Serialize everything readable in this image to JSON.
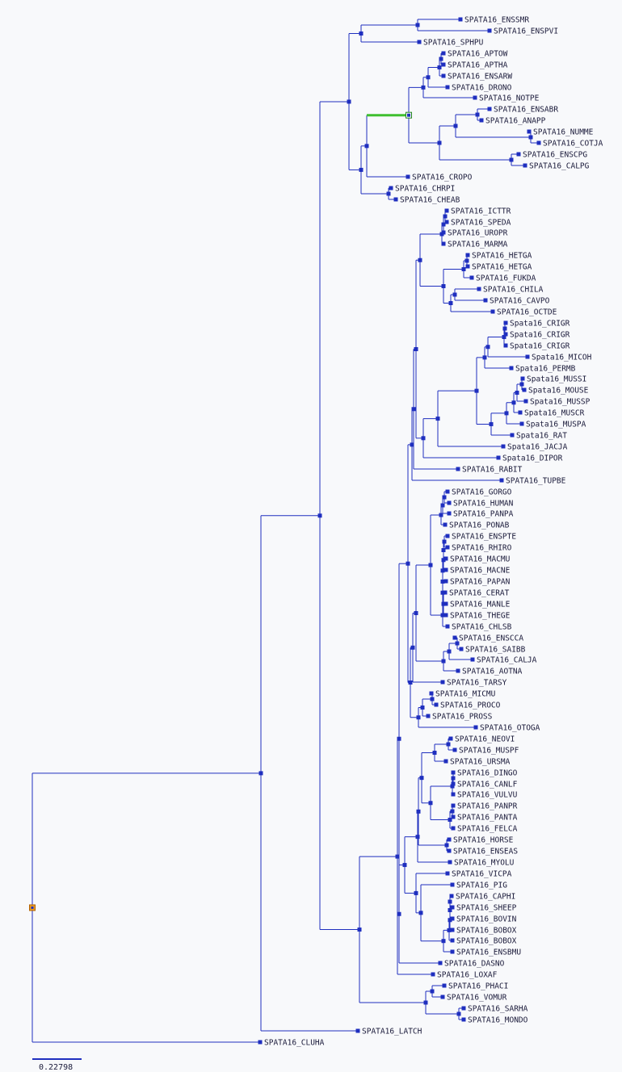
{
  "colors": {
    "branch": "#1f2fbf",
    "highlight": "#3fbf2f",
    "root_node": "#f0a020",
    "background": "#f8f9fb"
  },
  "scale_bar": {
    "label": "0.22798"
  },
  "leaves": [
    "SPATA16_ENSSMR",
    "SPATA16_ENSPVI",
    "SPATA16_SPHPU",
    "SPATA16_APTOW",
    "SPATA16_APTHA",
    "SPATA16_ENSARW",
    "SPATA16_DRONO",
    "SPATA16_NOTPE",
    "SPATA16_ENSABR",
    "SPATA16_ANAPP",
    "SPATA16_NUMME",
    "SPATA16_COTJA",
    "SPATA16_ENSCPG",
    "SPATA16_CALPG",
    "SPATA16_CROPO",
    "SPATA16_CHRPI",
    "SPATA16_CHEAB",
    "SPATA16_ICTTR",
    "SPATA16_SPEDA",
    "SPATA16_UROPR",
    "SPATA16_MARMA",
    "SPATA16_HETGA",
    "SPATA16_HETGA",
    "SPATA16_FUKDA",
    "SPATA16_CHILA",
    "SPATA16_CAVPO",
    "SPATA16_OCTDE",
    "Spata16_CRIGR",
    "Spata16_CRIGR",
    "Spata16_CRIGR",
    "Spata16_MICOH",
    "Spata16_PERMB",
    "Spata16_MUSSI",
    "Spata16_MOUSE",
    "Spata16_MUSSP",
    "Spata16_MUSCR",
    "Spata16_MUSPA",
    "Spata16_RAT",
    "Spata16_JACJA",
    "Spata16_DIPOR",
    "SPATA16_RABIT",
    "SPATA16_TUPBE",
    "SPATA16_GORGO",
    "SPATA16_HUMAN",
    "SPATA16_PANPA",
    "SPATA16_PONAB",
    "SPATA16_ENSPTE",
    "SPATA16_RHIRO",
    "SPATA16_MACMU",
    "SPATA16_MACNE",
    "SPATA16_PAPAN",
    "SPATA16_CERAT",
    "SPATA16_MANLE",
    "SPATA16_THEGE",
    "SPATA16_CHLSB",
    "SPATA16_ENSCCA",
    "SPATA16_SAIBB",
    "SPATA16_CALJA",
    "SPATA16_AOTNA",
    "SPATA16_TARSY",
    "SPATA16_MICMU",
    "SPATA16_PROCO",
    "SPATA16_PROSS",
    "SPATA16_OTOGA",
    "SPATA16_NEOVI",
    "SPATA16_MUSPF",
    "SPATA16_URSMA",
    "SPATA16_DINGO",
    "SPATA16_CANLF",
    "SPATA16_VULVU",
    "SPATA16_PANPR",
    "SPATA16_PANTA",
    "SPATA16_FELCA",
    "SPATA16_HORSE",
    "SPATA16_ENSEAS",
    "SPATA16_MYOLU",
    "SPATA16_VICPA",
    "SPATA16_PIG",
    "SPATA16_CAPHI",
    "SPATA16_SHEEP",
    "SPATA16_BOVIN",
    "SPATA16_BOBOX",
    "SPATA16_BOBOX",
    "SPATA16_ENSBMU",
    "SPATA16_DASNO",
    "SPATA16_LOXAF",
    "SPATA16_PHACI",
    "SPATA16_VOMUR",
    "SPATA16_SARHA",
    "SPATA16_MONDO",
    "SPATA16_LATCH",
    "SPATA16_CLUHA"
  ]
}
